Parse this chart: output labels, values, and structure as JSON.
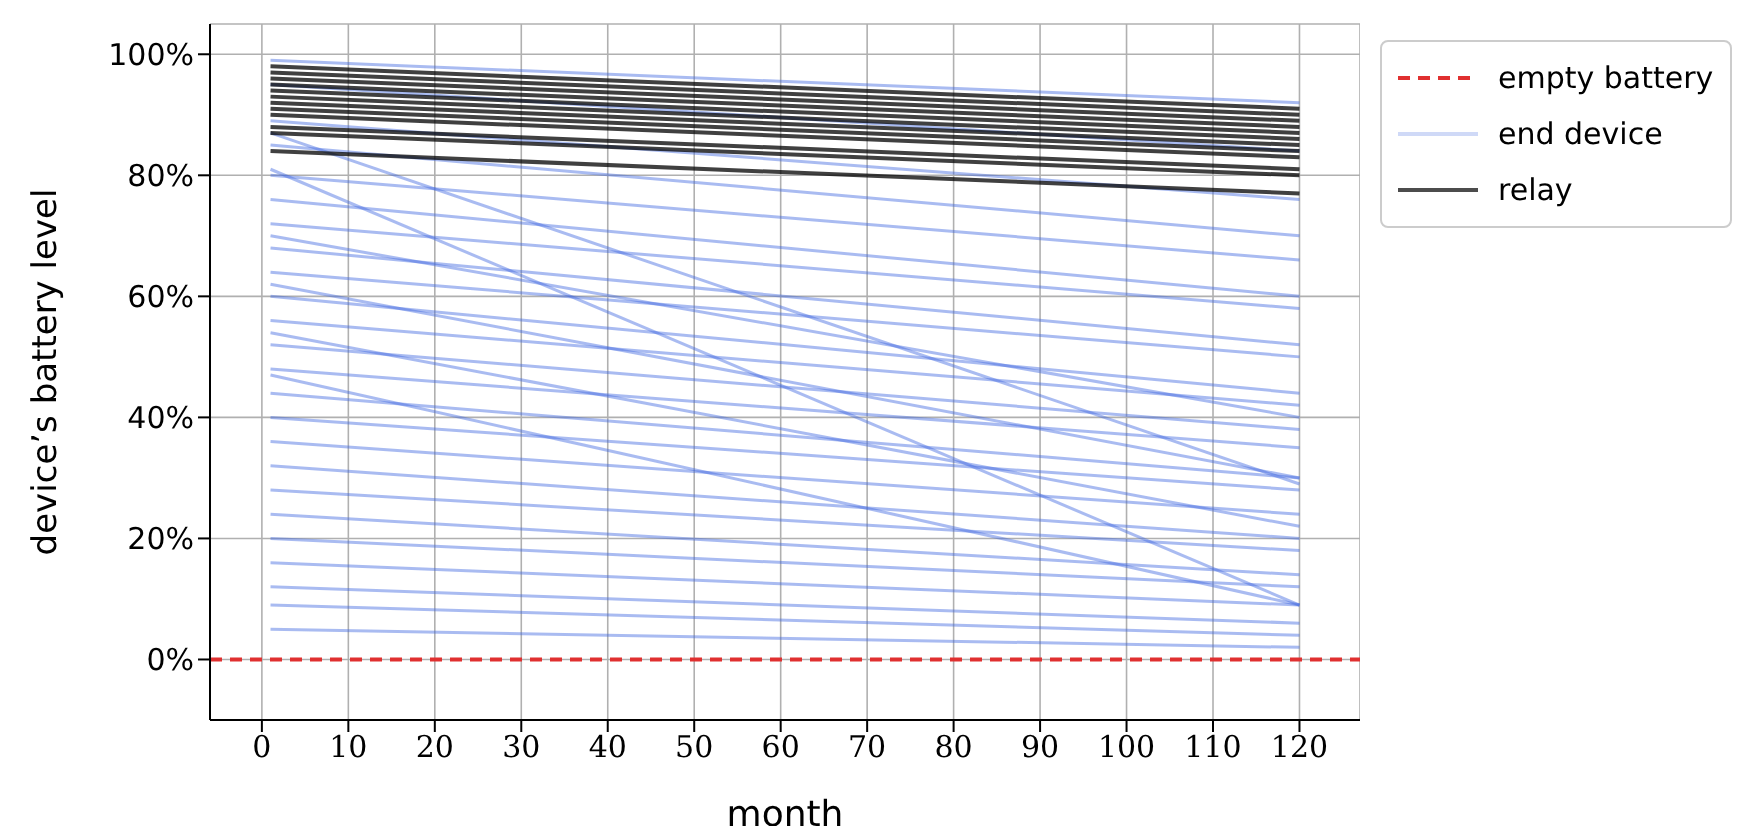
{
  "chart_data": {
    "type": "line",
    "xlabel": "month",
    "ylabel": "device’s battery level",
    "x": [
      1,
      120
    ],
    "xlim": [
      -6,
      127
    ],
    "xticks": [
      0,
      10,
      20,
      30,
      40,
      50,
      60,
      70,
      80,
      90,
      100,
      110,
      120
    ],
    "ylim": [
      -10,
      105
    ],
    "yticks": [
      {
        "value": 0,
        "label": "0%"
      },
      {
        "value": 20,
        "label": "20%"
      },
      {
        "value": 40,
        "label": "40%"
      },
      {
        "value": 60,
        "label": "60%"
      },
      {
        "value": 80,
        "label": "80%"
      },
      {
        "value": 100,
        "label": "100%"
      }
    ],
    "grid": true,
    "legend": "top right",
    "marker": "none",
    "line_style": "solid",
    "ref_lines": [
      {
        "axis": "y",
        "value": 0,
        "label": "empty battery",
        "color": "#e03030",
        "line_style": "dashed"
      }
    ],
    "series": [
      {
        "name": "end device",
        "color": "#4169e1",
        "values": [
          99,
          92
        ]
      },
      {
        "color": "#4169e1",
        "values": [
          81,
          9
        ]
      },
      {
        "color": "#4169e1",
        "values": [
          87,
          29
        ]
      },
      {
        "color": "#4169e1",
        "values": [
          47,
          9
        ]
      },
      {
        "color": "#4169e1",
        "values": [
          95,
          84
        ]
      },
      {
        "color": "#4169e1",
        "values": [
          89,
          76
        ]
      },
      {
        "color": "#4169e1",
        "values": [
          85,
          70
        ]
      },
      {
        "color": "#4169e1",
        "values": [
          80,
          66
        ]
      },
      {
        "color": "#4169e1",
        "values": [
          76,
          60
        ]
      },
      {
        "color": "#4169e1",
        "values": [
          72,
          58
        ]
      },
      {
        "color": "#4169e1",
        "values": [
          68,
          52
        ]
      },
      {
        "color": "#4169e1",
        "values": [
          64,
          50
        ]
      },
      {
        "color": "#4169e1",
        "values": [
          60,
          44
        ]
      },
      {
        "color": "#4169e1",
        "values": [
          56,
          42
        ]
      },
      {
        "color": "#4169e1",
        "values": [
          52,
          38
        ]
      },
      {
        "color": "#4169e1",
        "values": [
          48,
          35
        ]
      },
      {
        "color": "#4169e1",
        "values": [
          44,
          30
        ]
      },
      {
        "color": "#4169e1",
        "values": [
          40,
          28
        ]
      },
      {
        "color": "#4169e1",
        "values": [
          36,
          24
        ]
      },
      {
        "color": "#4169e1",
        "values": [
          32,
          20
        ]
      },
      {
        "color": "#4169e1",
        "values": [
          28,
          18
        ]
      },
      {
        "color": "#4169e1",
        "values": [
          24,
          14
        ]
      },
      {
        "color": "#4169e1",
        "values": [
          20,
          12
        ]
      },
      {
        "color": "#4169e1",
        "values": [
          16,
          9
        ]
      },
      {
        "color": "#4169e1",
        "values": [
          12,
          6
        ]
      },
      {
        "color": "#4169e1",
        "values": [
          9,
          4
        ]
      },
      {
        "color": "#4169e1",
        "values": [
          5,
          2
        ]
      },
      {
        "color": "#4169e1",
        "values": [
          70,
          40
        ]
      },
      {
        "color": "#4169e1",
        "values": [
          62,
          30
        ]
      },
      {
        "color": "#4169e1",
        "values": [
          54,
          22
        ]
      },
      {
        "name": "relay",
        "color": "#000000",
        "values": [
          98,
          91
        ]
      },
      {
        "color": "#000000",
        "values": [
          97,
          90
        ]
      },
      {
        "color": "#000000",
        "values": [
          96,
          89
        ]
      },
      {
        "color": "#000000",
        "values": [
          95,
          88
        ]
      },
      {
        "color": "#000000",
        "values": [
          94,
          87
        ]
      },
      {
        "color": "#000000",
        "values": [
          93,
          86
        ]
      },
      {
        "color": "#000000",
        "values": [
          92,
          85
        ]
      },
      {
        "color": "#000000",
        "values": [
          91,
          84
        ]
      },
      {
        "color": "#000000",
        "values": [
          90,
          83
        ]
      },
      {
        "color": "#000000",
        "values": [
          88,
          81
        ]
      },
      {
        "color": "#000000",
        "values": [
          87,
          80
        ]
      },
      {
        "color": "#000000",
        "values": [
          84,
          77
        ]
      }
    ]
  }
}
